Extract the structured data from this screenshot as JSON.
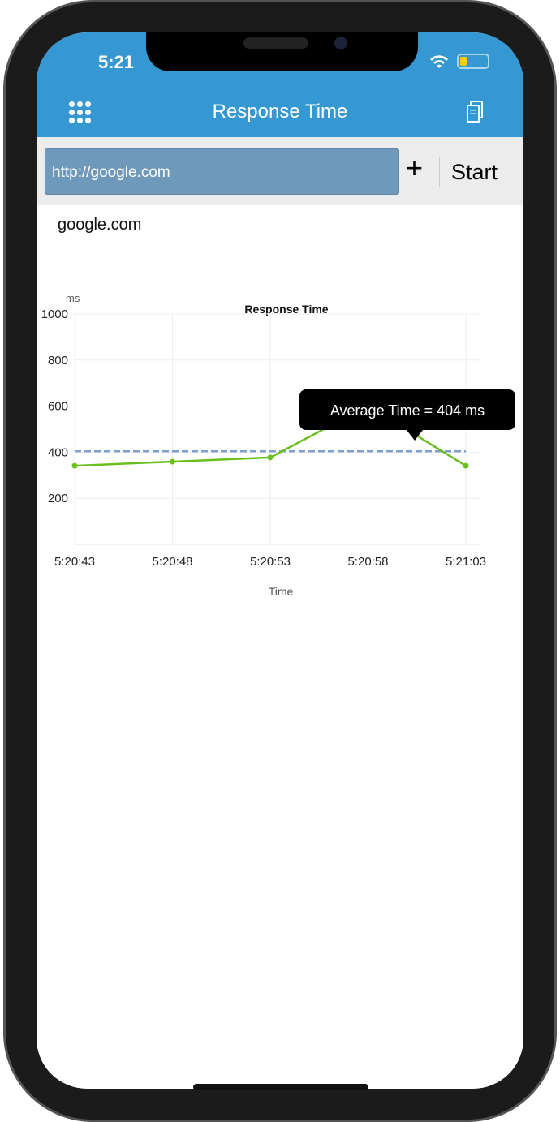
{
  "status_bar": {
    "time": "5:21",
    "battery_color": "#f5d000"
  },
  "header": {
    "title": "Response Time",
    "left_icon": "grid-menu-icon",
    "right_icon": "documents-icon",
    "color": "#3598d2"
  },
  "toolbar": {
    "url_value": "http://google.com",
    "add_label": "+",
    "start_label": "Start"
  },
  "host_label": "google.com",
  "chart_data": {
    "type": "line",
    "title": "Response Time",
    "ylabel": "ms",
    "xlabel": "Time",
    "ylim": [
      0,
      1000
    ],
    "yticks": [
      200,
      400,
      600,
      800,
      1000
    ],
    "categories": [
      "5:20:43",
      "5:20:48",
      "5:20:53",
      "5:20:58",
      "5:21:03"
    ],
    "values": [
      341,
      359,
      377,
      602,
      341
    ],
    "average": 404,
    "line_color": "#6abf1e",
    "average_color": "#7f9fcf",
    "grid": true,
    "tooltip": "Average Time = 404 ms"
  }
}
